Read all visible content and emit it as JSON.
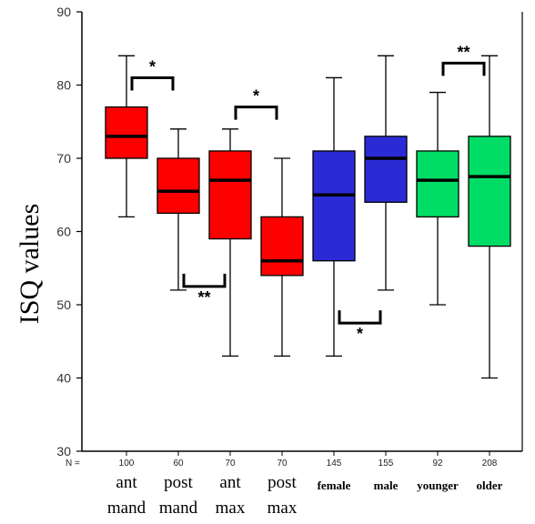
{
  "chart_data": {
    "type": "box",
    "ylabel": "ISQ values",
    "xlabel": "",
    "title": "",
    "ylim": [
      30,
      90
    ],
    "yticks": [
      30,
      40,
      50,
      60,
      70,
      80,
      90
    ],
    "n_prefix": "N =",
    "categories": [
      {
        "label": [
          "ant",
          "mand"
        ],
        "n": "100",
        "color": "#ff0000",
        "whisker_low": 62,
        "q1": 70,
        "median": 73,
        "q3": 77,
        "whisker_high": 84
      },
      {
        "label": [
          "post",
          "mand"
        ],
        "n": "60",
        "color": "#ff0000",
        "whisker_low": 52,
        "q1": 62.5,
        "median": 65.5,
        "q3": 70,
        "whisker_high": 74
      },
      {
        "label": [
          "ant",
          "max"
        ],
        "n": "70",
        "color": "#ff0000",
        "whisker_low": 43,
        "q1": 59,
        "median": 67,
        "q3": 71,
        "whisker_high": 74
      },
      {
        "label": [
          "post",
          "max"
        ],
        "n": "70",
        "color": "#ff0000",
        "whisker_low": 43,
        "q1": 54,
        "median": 56,
        "q3": 62,
        "whisker_high": 70
      },
      {
        "label": [
          "female"
        ],
        "n": "145",
        "color": "#2b2bd6",
        "whisker_low": 43,
        "q1": 56,
        "median": 65,
        "q3": 71,
        "whisker_high": 81
      },
      {
        "label": [
          "male"
        ],
        "n": "155",
        "color": "#2b2bd6",
        "whisker_low": 52,
        "q1": 64,
        "median": 70,
        "q3": 73,
        "whisker_high": 84
      },
      {
        "label": [
          "younger"
        ],
        "n": "92",
        "color": "#00dd66",
        "whisker_low": 50,
        "q1": 62,
        "median": 67,
        "q3": 71,
        "whisker_high": 79
      },
      {
        "label": [
          "older"
        ],
        "n": "208",
        "color": "#00dd66",
        "whisker_low": 40,
        "q1": 58,
        "median": 67.5,
        "q3": 73,
        "whisker_high": 84
      }
    ],
    "significance": [
      {
        "from": 0,
        "to": 1,
        "label": "*",
        "position": "above",
        "level": 81
      },
      {
        "from": 1,
        "to": 2,
        "label": "**",
        "position": "below",
        "level": 52.5
      },
      {
        "from": 2,
        "to": 3,
        "label": "*",
        "position": "above",
        "level": 77
      },
      {
        "from": 4,
        "to": 5,
        "label": "*",
        "position": "below",
        "level": 47.5
      },
      {
        "from": 6,
        "to": 7,
        "label": "**",
        "position": "above",
        "level": 83
      }
    ]
  }
}
